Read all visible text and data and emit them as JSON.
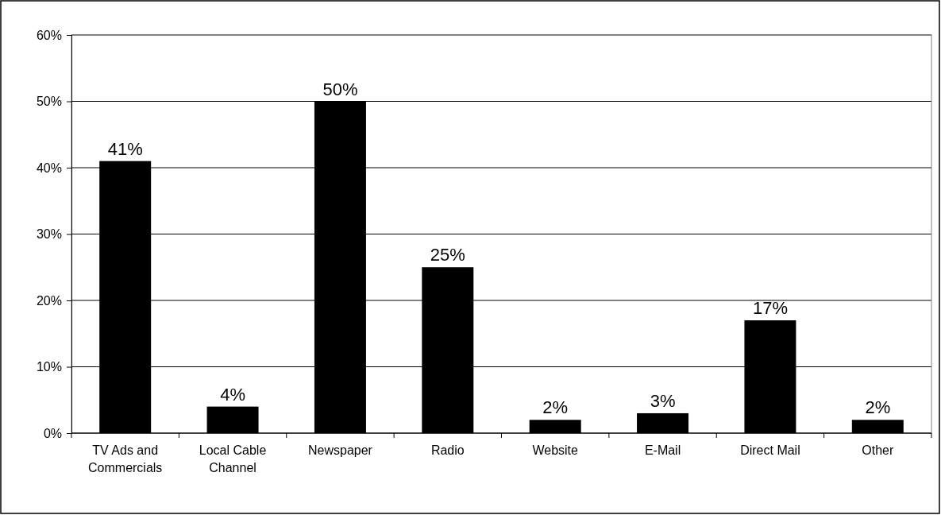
{
  "chart_data": {
    "type": "bar",
    "categories": [
      "TV Ads and Commercials",
      "Local Cable Channel",
      "Newspaper",
      "Radio",
      "Website",
      "E-Mail",
      "Direct Mail",
      "Other"
    ],
    "values": [
      41,
      4,
      50,
      25,
      2,
      3,
      17,
      2
    ],
    "value_labels": [
      "41%",
      "4%",
      "50%",
      "25%",
      "2%",
      "3%",
      "17%",
      "2%"
    ],
    "color": "#000000",
    "ylim": [
      0,
      60
    ],
    "yticks": [
      {
        "value": 0,
        "label": "0%"
      },
      {
        "value": 10,
        "label": "10%"
      },
      {
        "value": 20,
        "label": "20%"
      },
      {
        "value": 30,
        "label": "30%"
      },
      {
        "value": 40,
        "label": "40%"
      },
      {
        "value": 50,
        "label": "50%"
      },
      {
        "value": 60,
        "label": "60%"
      }
    ],
    "grid": "y"
  }
}
